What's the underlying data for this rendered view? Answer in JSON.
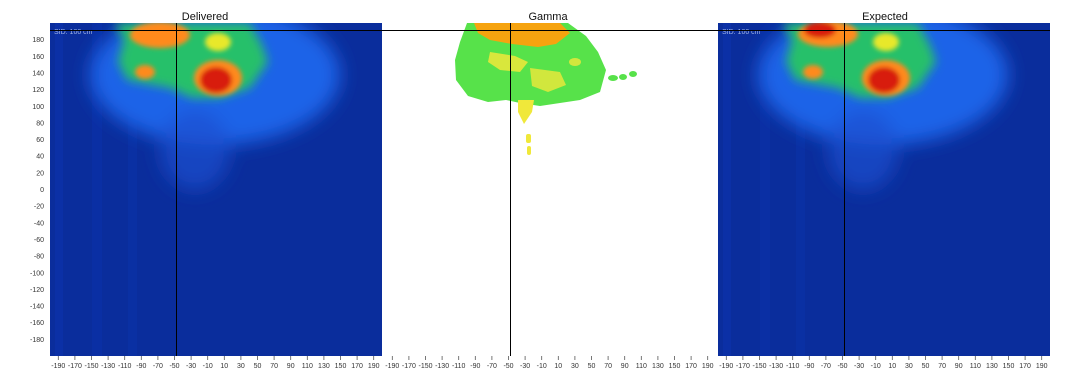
{
  "panels": [
    {
      "id": "delivered",
      "title": "Delivered",
      "watermark": "SID: 100 cm",
      "crosshair": {
        "x": -50,
        "y": 190
      }
    },
    {
      "id": "gamma",
      "title": "Gamma",
      "watermark": "",
      "crosshair": {
        "x": -50,
        "y": 190
      }
    },
    {
      "id": "expected",
      "title": "Expected",
      "watermark": "SID: 100 cm",
      "crosshair": {
        "x": -50,
        "y": 190
      }
    }
  ],
  "y_axis": {
    "ticks": [
      180,
      160,
      140,
      120,
      100,
      80,
      60,
      40,
      20,
      0,
      -20,
      -40,
      -60,
      -80,
      -100,
      -120,
      -140,
      -160,
      -180
    ],
    "range": [
      -200,
      200
    ]
  },
  "x_axis": {
    "ticks": [
      -190,
      -170,
      -150,
      -130,
      -110,
      -90,
      -70,
      -50,
      -30,
      -10,
      10,
      30,
      50,
      70,
      90,
      110,
      130,
      150,
      170,
      190
    ],
    "range": [
      -200,
      200
    ]
  },
  "colors": {
    "background_low": "#0a2d9c",
    "low_mid": "#1e63e8",
    "mid": "#27c06b",
    "high_mid": "#e8e82a",
    "high": "#ff8a1c",
    "max": "#d81c10",
    "gamma_pass": "#57e24a",
    "gamma_marginal": "#f0e83a",
    "gamma_fail": "#f6a30f",
    "crosshair": "#000000"
  }
}
